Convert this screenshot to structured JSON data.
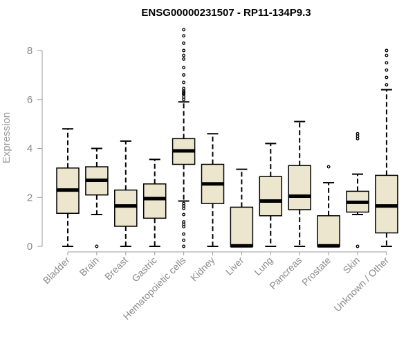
{
  "chart_data": {
    "type": "box",
    "title": "ENSG00000231507 - RP11-134P9.3",
    "ylabel": "Expression",
    "xlabel": "",
    "ylim": [
      0,
      8.8
    ],
    "yticks": [
      0,
      2,
      4,
      6,
      8
    ],
    "grid": false,
    "colors": {
      "box_fill": "#ede6cf",
      "box_stroke": "#000000",
      "median": "#000000",
      "axis": "#9a9a9a"
    },
    "categories": [
      "Bladder",
      "Brain",
      "Breast",
      "Gastric",
      "Hematopoietic cells",
      "Kidney",
      "Liver",
      "Lung",
      "Pancreas",
      "Prostate",
      "Skin",
      "Unknown / Other"
    ],
    "boxes": [
      {
        "category": "Bladder",
        "whisker_low": 0.0,
        "q1": 1.35,
        "median": 2.3,
        "q3": 3.2,
        "whisker_high": 4.8,
        "outliers": []
      },
      {
        "category": "Brain",
        "whisker_low": 1.3,
        "q1": 2.1,
        "median": 2.7,
        "q3": 3.25,
        "whisker_high": 4.0,
        "outliers": [
          0.0
        ]
      },
      {
        "category": "Breast",
        "whisker_low": 0.0,
        "q1": 0.82,
        "median": 1.65,
        "q3": 2.3,
        "whisker_high": 4.3,
        "outliers": []
      },
      {
        "category": "Gastric",
        "whisker_low": 0.0,
        "q1": 1.15,
        "median": 1.95,
        "q3": 2.55,
        "whisker_high": 3.55,
        "outliers": []
      },
      {
        "category": "Hematopoietic cells",
        "whisker_low": 1.85,
        "q1": 3.35,
        "median": 3.9,
        "q3": 4.4,
        "whisker_high": 5.9,
        "outliers": [
          8.85,
          8.6,
          8.3,
          8.0,
          7.8,
          7.65,
          7.3,
          7.0,
          6.7,
          6.45,
          6.35,
          6.3,
          6.25,
          6.2,
          6.1,
          6.0,
          1.75,
          1.65,
          1.55,
          1.3,
          1.0,
          0.9,
          0.8,
          0.5,
          0.25,
          0.0
        ]
      },
      {
        "category": "Kidney",
        "whisker_low": 0.0,
        "q1": 1.75,
        "median": 2.55,
        "q3": 3.35,
        "whisker_high": 4.6,
        "outliers": []
      },
      {
        "category": "Liver",
        "whisker_low": 0.0,
        "q1": 0.0,
        "median": 0.02,
        "q3": 1.6,
        "whisker_high": 3.15,
        "outliers": []
      },
      {
        "category": "Lung",
        "whisker_low": 0.0,
        "q1": 1.25,
        "median": 1.85,
        "q3": 2.85,
        "whisker_high": 4.2,
        "outliers": []
      },
      {
        "category": "Pancreas",
        "whisker_low": 0.0,
        "q1": 1.5,
        "median": 2.05,
        "q3": 3.3,
        "whisker_high": 5.1,
        "outliers": []
      },
      {
        "category": "Prostate",
        "whisker_low": 0.0,
        "q1": 0.0,
        "median": 0.02,
        "q3": 1.25,
        "whisker_high": 2.6,
        "outliers": [
          3.25
        ]
      },
      {
        "category": "Skin",
        "whisker_low": 1.3,
        "q1": 1.4,
        "median": 1.8,
        "q3": 2.25,
        "whisker_high": 2.95,
        "outliers": [
          4.5,
          4.6,
          4.4,
          0.0
        ]
      },
      {
        "category": "Unknown / Other",
        "whisker_low": 0.0,
        "q1": 0.55,
        "median": 1.65,
        "q3": 2.9,
        "whisker_high": 6.4,
        "outliers": [
          8.0,
          7.8,
          7.5,
          7.2,
          6.9,
          6.6
        ]
      }
    ]
  }
}
